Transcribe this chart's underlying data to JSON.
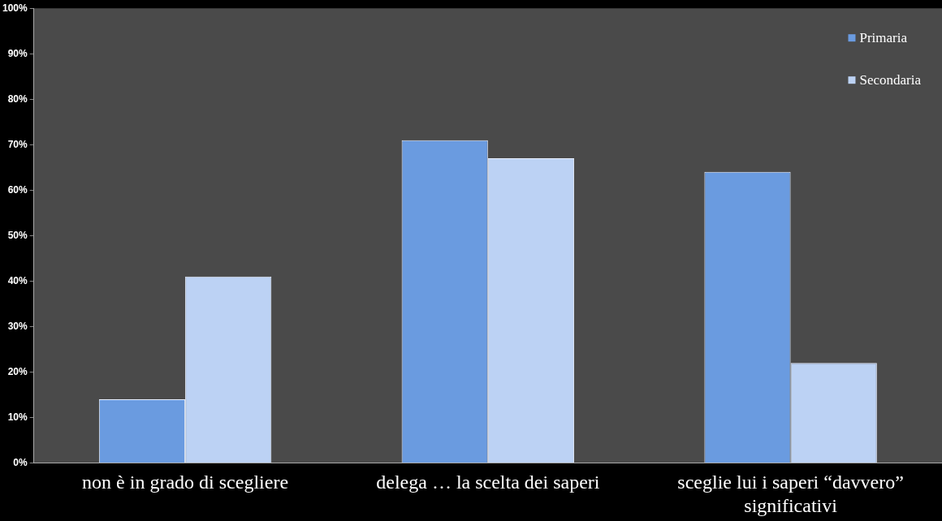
{
  "chart_data": {
    "type": "bar",
    "categories": [
      "non è in grado di scegliere",
      "delega … la scelta dei saperi",
      "sceglie lui i saperi “davvero” significativi"
    ],
    "series": [
      {
        "name": "Primaria",
        "color": "#6a9be0",
        "values": [
          14,
          71,
          64
        ]
      },
      {
        "name": "Secondaria",
        "color": "#bcd2f4",
        "values": [
          41,
          67,
          22
        ]
      }
    ],
    "ylim": [
      0,
      100
    ],
    "yticks": [
      {
        "value": 0,
        "label": "0%"
      },
      {
        "value": 10,
        "label": "10%"
      },
      {
        "value": 20,
        "label": "20%"
      },
      {
        "value": 30,
        "label": "30%"
      },
      {
        "value": 40,
        "label": "40%"
      },
      {
        "value": 50,
        "label": "50%"
      },
      {
        "value": 60,
        "label": "60%"
      },
      {
        "value": 70,
        "label": "70%"
      },
      {
        "value": 80,
        "label": "80%"
      },
      {
        "value": 90,
        "label": "90%"
      },
      {
        "value": 100,
        "label": "100%"
      }
    ],
    "grid": false,
    "legend": "top right"
  }
}
